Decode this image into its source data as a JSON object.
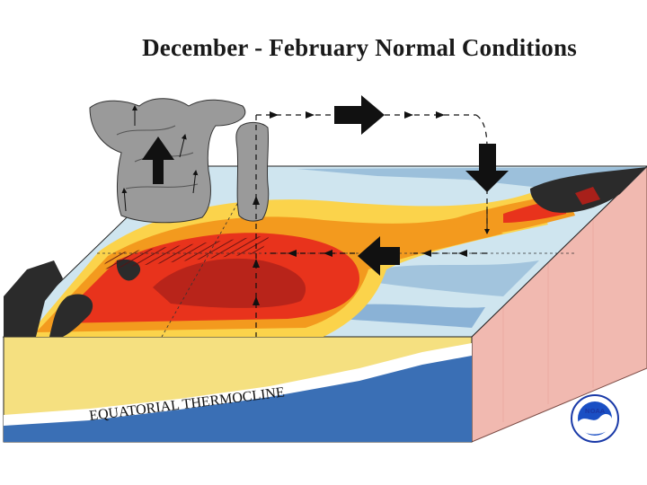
{
  "title": "December - February Normal Conditions",
  "thermocline_label": "EQUATORIAL THERMOCLINE",
  "logo": {
    "name": "NOAA",
    "text": "NOAA"
  },
  "colors": {
    "warm_dark": "#a8201a",
    "warm": "#e8331c",
    "orange": "#f39a1e",
    "yellow": "#fbd34b",
    "pale": "#fff2b0",
    "cool_light": "#cfe5ef",
    "cool": "#8fb7d6",
    "cool_dark": "#5b8fc4",
    "land": "#2b2b2b",
    "ocean_deep": "#3a6fb5",
    "ocean_upper": "#f5e080",
    "side_face": "#f1b9b0",
    "cloud": "#9a9a9a"
  }
}
